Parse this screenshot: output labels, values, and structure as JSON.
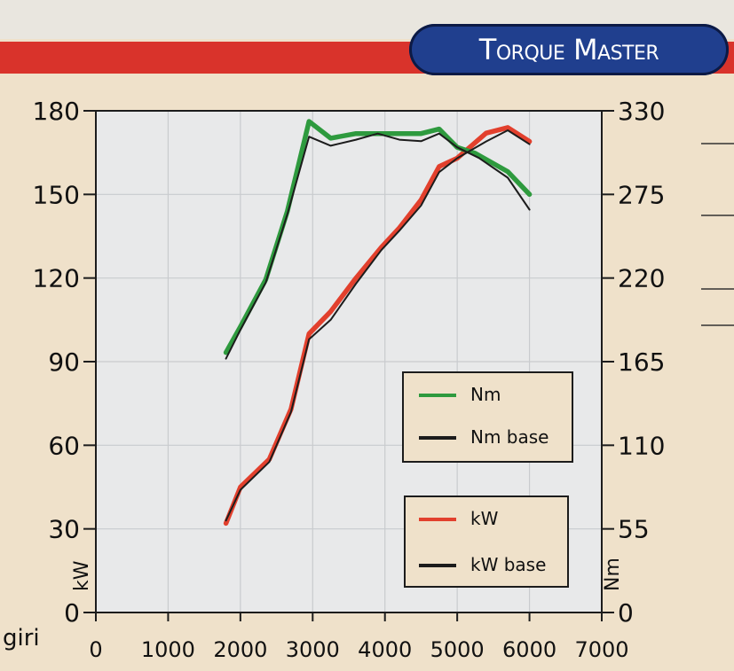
{
  "title": "Torque Master",
  "chart_data": {
    "type": "line",
    "xlabel": "giri",
    "ylabel_left": "kW",
    "ylabel_right": "Nm",
    "xlim": [
      0,
      7000
    ],
    "ylim_left": [
      0,
      180
    ],
    "ylim_right": [
      0,
      330
    ],
    "x_ticks": [
      0,
      1000,
      2000,
      3000,
      4000,
      5000,
      6000,
      7000
    ],
    "y_left_ticks": [
      0,
      30,
      60,
      90,
      120,
      150,
      180
    ],
    "y_right_ticks": [
      0,
      55,
      110,
      165,
      220,
      275,
      330
    ],
    "grid": true,
    "series": [
      {
        "name": "kW",
        "color": "#e2402d",
        "axis": "left",
        "x": [
          1800,
          2000,
          2400,
          2700,
          2950,
          3250,
          3600,
          3950,
          4200,
          4500,
          4750,
          5000,
          5400,
          5700,
          6000
        ],
        "y": [
          32,
          45,
          55,
          73,
          100,
          108,
          120,
          131,
          138,
          148,
          160,
          163,
          172,
          174,
          169
        ]
      },
      {
        "name": "kW base",
        "color": "#1c1c1c",
        "axis": "left",
        "x": [
          1800,
          2000,
          2400,
          2700,
          2950,
          3250,
          3600,
          3950,
          4200,
          4500,
          4750,
          5000,
          5400,
          5700,
          6000
        ],
        "y": [
          33,
          44,
          54,
          72,
          98,
          105,
          118,
          130,
          137,
          146,
          158,
          163,
          169,
          173,
          168
        ]
      },
      {
        "name": "Nm",
        "color": "#2e9a3e",
        "axis": "right",
        "x": [
          1800,
          2000,
          2350,
          2650,
          2950,
          3250,
          3600,
          4000,
          4500,
          4750,
          5000,
          5250,
          5400,
          5700,
          6000
        ],
        "y": [
          171,
          188,
          219,
          264,
          323,
          312,
          315,
          315,
          315,
          318,
          306,
          302,
          298,
          290,
          275
        ]
      },
      {
        "name": "Nm base",
        "color": "#1c1c1c",
        "axis": "right",
        "x": [
          1800,
          2000,
          2350,
          2650,
          2950,
          3250,
          3600,
          3900,
          4200,
          4500,
          4750,
          5000,
          5300,
          5700,
          6000
        ],
        "y": [
          167,
          186,
          217,
          262,
          313,
          307,
          311,
          315,
          311,
          310,
          315,
          306,
          299,
          286,
          265
        ]
      }
    ],
    "legend_groups": [
      [
        "Nm",
        "Nm base"
      ],
      [
        "kW",
        "kW base"
      ]
    ]
  }
}
